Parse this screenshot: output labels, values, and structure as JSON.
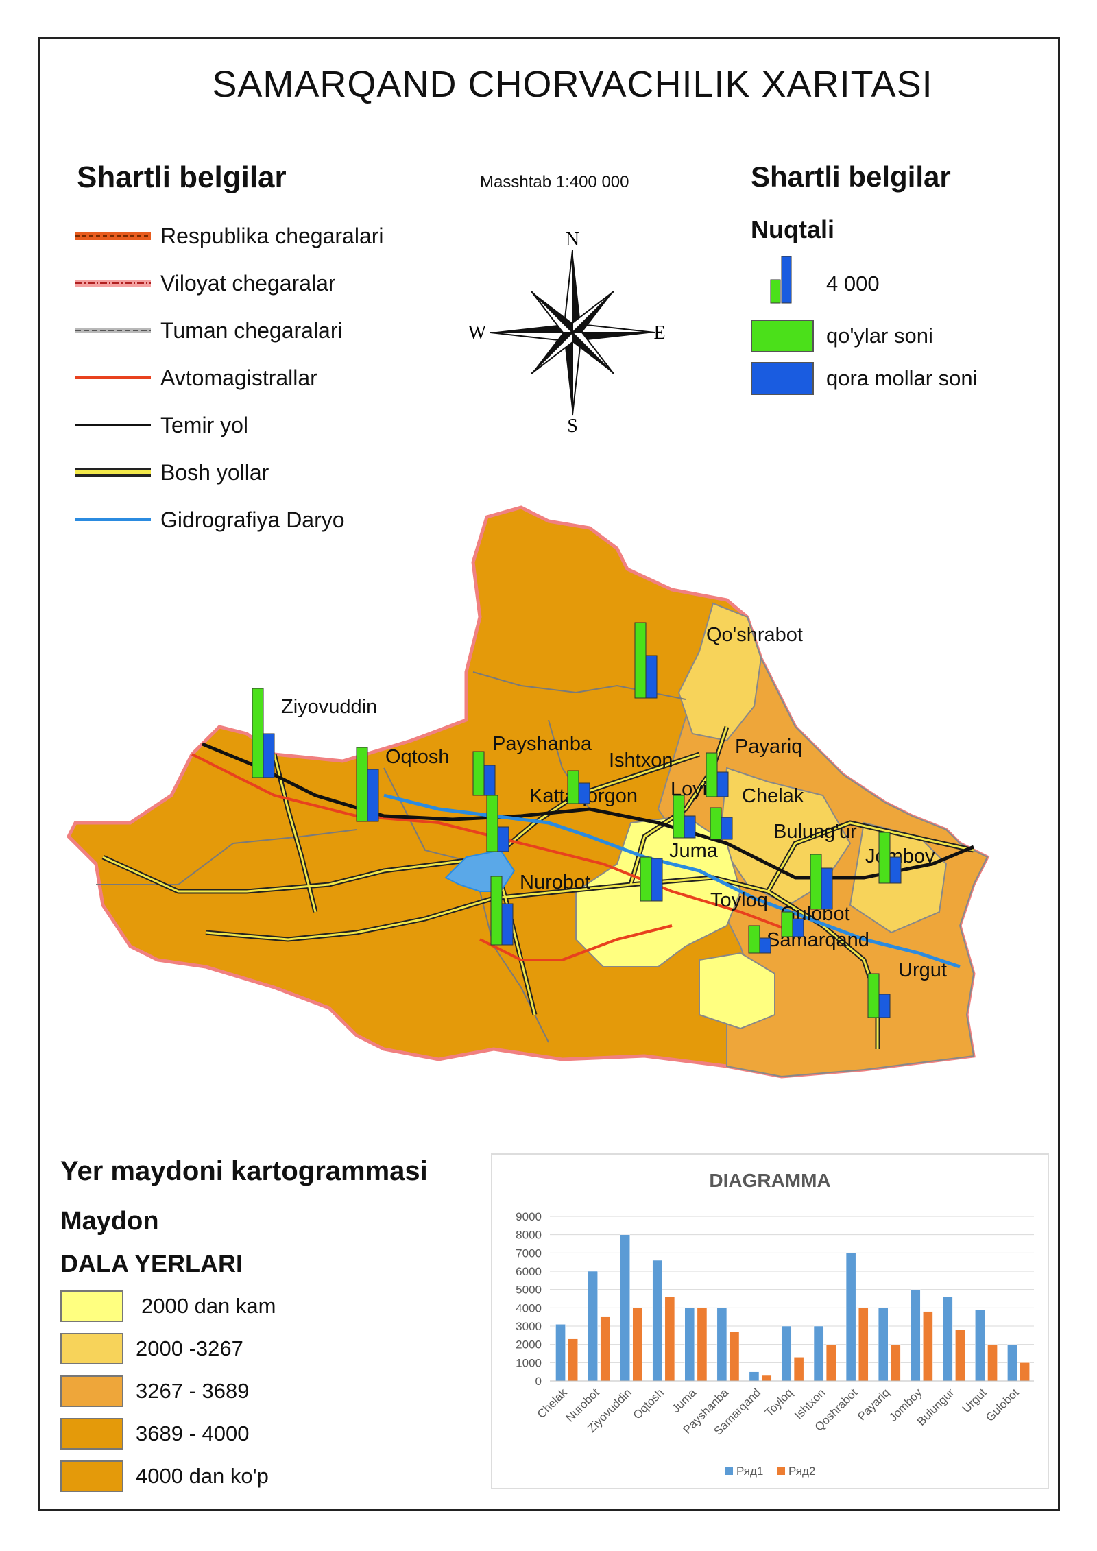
{
  "title": "SAMARQAND CHORVACHILIK XARITASI",
  "scale_text": "Masshtab  1:400 000",
  "left_legend": {
    "heading": "Shartli belgilar",
    "items": [
      {
        "label": "Respublika chegaralari",
        "icon": "republic-border-line",
        "color": "#e85c1e"
      },
      {
        "label": "Viloyat chegaralar",
        "icon": "region-border-line",
        "color": "#f08080"
      },
      {
        "label": "Tuman chegaralari",
        "icon": "district-border-line",
        "color": "#999999"
      },
      {
        "label": "Avtomagistrallar",
        "icon": "highway-line",
        "color": "#e8411e"
      },
      {
        "label": "Temir yol",
        "icon": "railway-line",
        "color": "#111111"
      },
      {
        "label": "Bosh yollar",
        "icon": "main-road-line",
        "color": "#f2e84a"
      },
      {
        "label": "Gidrografiya Daryo",
        "icon": "river-line",
        "color": "#2b8be0"
      }
    ]
  },
  "compass": {
    "n": "N",
    "s": "S",
    "e": "E",
    "w": "W"
  },
  "right_legend": {
    "heading": "Shartli belgilar",
    "subheading": "Nuqtali",
    "value_label": "4 000",
    "items": [
      {
        "label": "qo'ylar soni",
        "color": "#4be01a"
      },
      {
        "label": "qora mollar soni",
        "color": "#1a5ce0"
      }
    ]
  },
  "districts": [
    "Qo'shrabot",
    "Ziyovuddin",
    "Oqtosh",
    "Payshanba",
    "Ishtxon",
    "Payariq",
    "Kattaqorgon",
    "Loyish",
    "Chelak",
    "Bulung'ur",
    "Jomboy",
    "Juma",
    "Nurobot",
    "Toyloq",
    "Gulobot",
    "Samarqand",
    "Urgut"
  ],
  "cartogram": {
    "heading": "Yer maydoni kartogrammasi",
    "sub1": "Maydon",
    "sub2": "DALA YERLARI",
    "classes": [
      {
        "label": "2000 dan kam",
        "color": "#ffff80"
      },
      {
        "label": "2000 -3267",
        "color": "#f7d35a"
      },
      {
        "label": "3267 - 3689",
        "color": "#eea63a"
      },
      {
        "label": "3689 - 4000",
        "color": "#e49a0a"
      },
      {
        "label": "4000 dan ko'p",
        "color": "#e49a0a"
      }
    ]
  },
  "chart_data": {
    "type": "bar",
    "title": "DIAGRAMMA",
    "categories": [
      "Chelak",
      "Nurobot",
      "Ziyovuddin",
      "Oqtosh",
      "Juma",
      "Payshanba",
      "Samarqand",
      "Toyloq",
      "Ishtxon",
      "Qoshrabot",
      "Payariq",
      "Jomboy",
      "Bulungur",
      "Urgut",
      "Gulobot"
    ],
    "series": [
      {
        "name": "Ряд1",
        "color": "#5b9bd5",
        "values": [
          3100,
          6000,
          8000,
          6600,
          4000,
          4000,
          500,
          3000,
          3000,
          7000,
          4000,
          5000,
          4600,
          3900,
          2000
        ]
      },
      {
        "name": "Ряд2",
        "color": "#ed7d31",
        "values": [
          2300,
          3500,
          4000,
          4600,
          4000,
          2700,
          300,
          1300,
          2000,
          4000,
          2000,
          3800,
          2800,
          2000,
          1000
        ]
      }
    ],
    "ylim": [
      0,
      9000
    ],
    "yticks": [
      0,
      1000,
      2000,
      3000,
      4000,
      5000,
      6000,
      7000,
      8000,
      9000
    ],
    "grid": true,
    "legend": "bottom"
  }
}
